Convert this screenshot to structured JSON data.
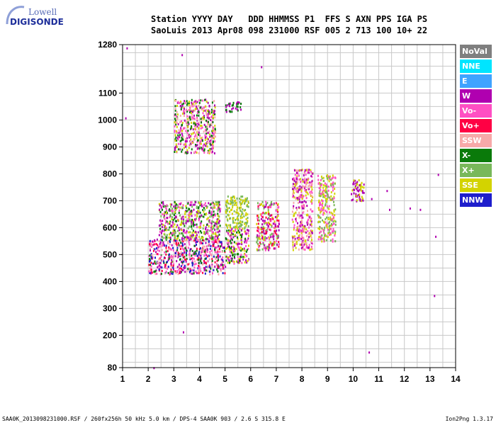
{
  "logo": {
    "line1": "Lowell",
    "line2": "DIGISONDE"
  },
  "header": {
    "line1": "Station YYYY DAY   DDD HHMMSS P1  FFS S AXN PPS IGA PS",
    "line2": "SaoLuis 2013 Apr08 098 231000 RSF 005 2 713 100 10+ 22"
  },
  "legend": [
    {
      "label": "NoVal",
      "color": "#7f7f7f"
    },
    {
      "label": "NNE",
      "color": "#00e5ff"
    },
    {
      "label": "E",
      "color": "#3fa3ff"
    },
    {
      "label": "W",
      "color": "#b000b0"
    },
    {
      "label": "Vo-",
      "color": "#ff4fc3"
    },
    {
      "label": "Vo+",
      "color": "#ff0044"
    },
    {
      "label": "SSW",
      "color": "#f7a9a9"
    },
    {
      "label": "X-",
      "color": "#0a7a0a"
    },
    {
      "label": "X+",
      "color": "#78b85a"
    },
    {
      "label": "SSE",
      "color": "#d3d300"
    },
    {
      "label": "NNW",
      "color": "#1e1ecc"
    }
  ],
  "chart_data": {
    "type": "scatter",
    "title": "",
    "xlabel": "",
    "ylabel": "",
    "xlim": [
      1,
      14
    ],
    "ylim": [
      80,
      1280
    ],
    "x_ticks": [
      1,
      2,
      3,
      4,
      5,
      6,
      7,
      8,
      9,
      10,
      11,
      12,
      13,
      14
    ],
    "y_ticks": [
      80,
      200,
      300,
      400,
      500,
      600,
      700,
      800,
      900,
      1000,
      1100,
      1280
    ],
    "grid": true,
    "legend_position": "right",
    "clusters": [
      {
        "x": [
          2.0,
          5.0
        ],
        "y": [
          430,
          560
        ],
        "colors": [
          "Vo-",
          "W",
          "Vo+",
          "X-",
          "SSW",
          "NNW"
        ]
      },
      {
        "x": [
          2.4,
          4.8
        ],
        "y": [
          560,
          700
        ],
        "colors": [
          "SSE",
          "X+",
          "X-",
          "W",
          "Vo-"
        ]
      },
      {
        "x": [
          5.0,
          5.9
        ],
        "y": [
          470,
          600
        ],
        "colors": [
          "Vo-",
          "W",
          "X-",
          "SSE"
        ]
      },
      {
        "x": [
          5.0,
          5.9
        ],
        "y": [
          600,
          720
        ],
        "colors": [
          "SSE",
          "X+"
        ]
      },
      {
        "x": [
          6.2,
          7.1
        ],
        "y": [
          520,
          700
        ],
        "colors": [
          "W",
          "Vo-",
          "Vo+",
          "SSE",
          "X+"
        ]
      },
      {
        "x": [
          7.6,
          8.4
        ],
        "y": [
          520,
          820
        ],
        "colors": [
          "Vo-",
          "SSW",
          "SSE",
          "W"
        ]
      },
      {
        "x": [
          8.6,
          9.3
        ],
        "y": [
          550,
          800
        ],
        "colors": [
          "SSE",
          "Vo-",
          "X+"
        ]
      },
      {
        "x": [
          3.0,
          4.6
        ],
        "y": [
          880,
          1080
        ],
        "colors": [
          "W",
          "Vo-",
          "X-",
          "SSE",
          "SSW"
        ]
      },
      {
        "x": [
          5.0,
          5.6
        ],
        "y": [
          1030,
          1070
        ],
        "colors": [
          "W",
          "X-"
        ]
      },
      {
        "x": [
          9.9,
          10.4
        ],
        "y": [
          700,
          780
        ],
        "colors": [
          "W",
          "SSE"
        ]
      }
    ]
  },
  "footer": {
    "left": "SAA0K_2013098231000.RSF / 260fx256h 50 kHz 5.0 km / DPS-4 SAA0K 903 / 2.6 S 315.8 E",
    "right": "Ion2Png 1.3.17"
  }
}
